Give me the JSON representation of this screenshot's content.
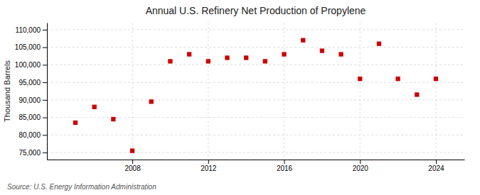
{
  "chart_data": {
    "type": "scatter",
    "title": "Annual U.S. Refinery Net Production of Propylene",
    "ylabel": "Thousand Barrels",
    "annotation": "Source: U.S. Energy Information Administration",
    "x": [
      2005,
      2006,
      2007,
      2008,
      2009,
      2010,
      2011,
      2012,
      2013,
      2014,
      2015,
      2016,
      2017,
      2018,
      2019,
      2020,
      2021,
      2022,
      2023,
      2024
    ],
    "values": [
      83500,
      88000,
      84500,
      75500,
      89500,
      101000,
      103000,
      101000,
      102000,
      102000,
      101000,
      103000,
      107000,
      104000,
      103000,
      96000,
      106000,
      96000,
      91500,
      96000
    ],
    "color": "#cc0000",
    "marker": "square",
    "grid": true,
    "xlim": [
      2003.5,
      2025.5
    ],
    "xticks": [
      2008,
      2012,
      2016,
      2020,
      2024
    ],
    "ylim": [
      73000,
      112000
    ],
    "yticks": [
      {
        "value": 75000,
        "label": "75,000"
      },
      {
        "value": 80000,
        "label": "80,000"
      },
      {
        "value": 85000,
        "label": "85,000"
      },
      {
        "value": 90000,
        "label": "90,000"
      },
      {
        "value": 95000,
        "label": "95,000"
      },
      {
        "value": 100000,
        "label": "100,000"
      },
      {
        "value": 105000,
        "label": "105,000"
      },
      {
        "value": 110000,
        "label": "110,000"
      }
    ]
  }
}
